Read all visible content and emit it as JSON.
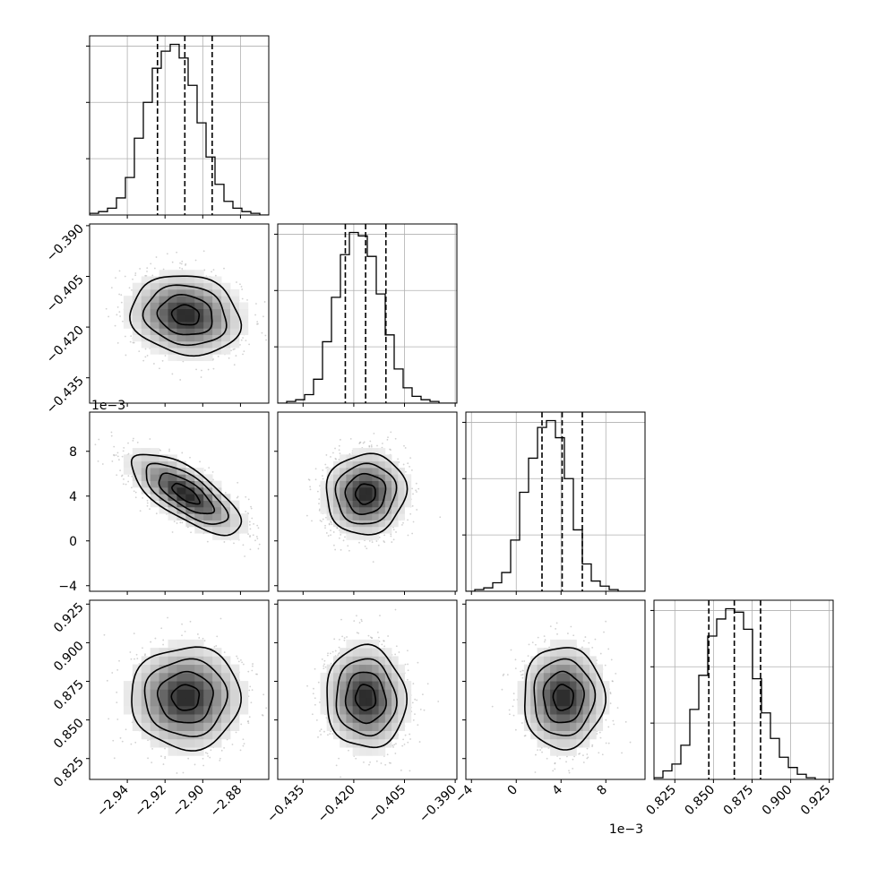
{
  "chart_data": {
    "type": "corner",
    "grid": true,
    "colors": {
      "hist": "#000000",
      "grid": "#b0b0b0",
      "scatter": "#9a9a9a",
      "quantile": "#000000"
    },
    "parameters": [
      {
        "index": 0,
        "mean": -2.909,
        "sd": 0.0145,
        "range": [
          -2.96,
          -2.865
        ],
        "ticks": [
          -2.94,
          -2.92,
          -2.9,
          -2.88
        ],
        "tick_labels": [
          "−2.94",
          "−2.92",
          "−2.90",
          "−2.88"
        ],
        "quantiles": [
          -2.924,
          -2.9095,
          -2.895
        ],
        "hist": [
          1,
          2,
          4,
          10,
          22,
          45,
          66,
          86,
          96,
          100,
          92,
          76,
          54,
          34,
          18,
          8,
          4,
          2,
          1,
          0
        ]
      },
      {
        "index": 1,
        "mean": -0.4165,
        "sd": 0.0059,
        "range": [
          -0.4425,
          -0.3895
        ],
        "ticks": [
          -0.435,
          -0.42,
          -0.405,
          -0.39
        ],
        "tick_labels": [
          "−0.435",
          "−0.420",
          "−0.405",
          "−0.390"
        ],
        "offset_text": "",
        "quantiles": [
          -0.4225,
          -0.4165,
          -0.4105
        ],
        "hist": [
          0,
          1,
          2,
          5,
          14,
          36,
          62,
          87,
          100,
          98,
          86,
          64,
          40,
          20,
          9,
          4,
          2,
          1,
          0,
          0
        ]
      },
      {
        "index": 2,
        "mean": 0.0042,
        "sd": 0.0018,
        "range": [
          -0.0045,
          0.0115
        ],
        "ticks": [
          -0.004,
          0,
          0.004,
          0.008
        ],
        "tick_labels": [
          "−4",
          "0",
          "4",
          "8"
        ],
        "offset_text": "1e−3",
        "quantiles": [
          0.0023,
          0.0041,
          0.0059
        ],
        "hist": [
          0,
          1,
          2,
          5,
          11,
          30,
          58,
          78,
          96,
          100,
          90,
          66,
          36,
          16,
          6,
          3,
          1,
          0,
          0,
          0
        ]
      },
      {
        "index": 3,
        "mean": 0.8645,
        "sd": 0.0165,
        "range": [
          0.8115,
          0.9275
        ],
        "ticks": [
          0.825,
          0.85,
          0.875,
          0.9,
          0.925
        ],
        "tick_labels": [
          "0.825",
          "0.850",
          "0.875",
          "0.900",
          "0.925"
        ],
        "quantiles": [
          0.847,
          0.8635,
          0.8805
        ],
        "hist": [
          1,
          5,
          9,
          20,
          41,
          61,
          84,
          94,
          100,
          98,
          88,
          59,
          39,
          24,
          13,
          7,
          3,
          1,
          0,
          0
        ]
      }
    ],
    "correlations": {
      "1_0": -0.12,
      "2_0": -0.72,
      "2_1": 0.05,
      "3_0": 0.0,
      "3_1": -0.05,
      "3_2": 0.0
    },
    "contour_levels": [
      0.5,
      1.0,
      1.5,
      2.0
    ]
  }
}
